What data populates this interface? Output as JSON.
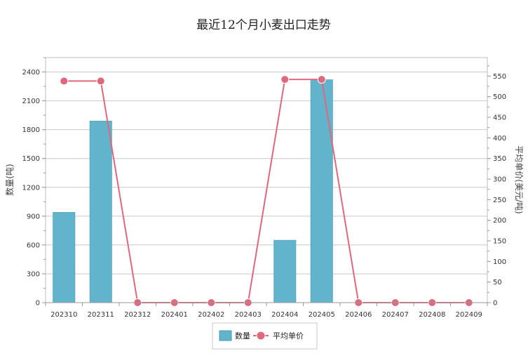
{
  "chart_data": {
    "type": "bar",
    "title": "最近12个月小麦出口走势",
    "categories": [
      "202310",
      "202311",
      "202312",
      "202401",
      "202402",
      "202403",
      "202404",
      "202405",
      "202406",
      "202407",
      "202408",
      "202409"
    ],
    "series": [
      {
        "name": "数量",
        "type": "bar",
        "axis": "left",
        "values": [
          940,
          1890,
          0,
          0,
          0,
          0,
          650,
          2320,
          0,
          0,
          0,
          0
        ]
      },
      {
        "name": "平均单价",
        "type": "line",
        "axis": "right",
        "values": [
          538,
          538,
          0,
          0,
          0,
          0,
          542,
          542,
          0,
          0,
          0,
          0
        ]
      }
    ],
    "ylabel_left": "数量(吨)",
    "ylabel_right": "平均单价(美元/吨)",
    "ylim_left": [
      0,
      2550
    ],
    "ylim_right": [
      0,
      595
    ],
    "yticks_left": [
      0,
      300,
      600,
      900,
      1200,
      1500,
      1800,
      2100,
      2400
    ],
    "yticks_right": [
      0,
      50,
      100,
      150,
      200,
      250,
      300,
      350,
      400,
      450,
      500,
      550
    ],
    "grid": true,
    "legend_position": "bottom",
    "colors": {
      "bar": "#62b4cc",
      "bar_border": "#4a98ad",
      "line": "#e0687c",
      "grid": "#c8c8c8",
      "axis": "#9a9a9a"
    }
  }
}
